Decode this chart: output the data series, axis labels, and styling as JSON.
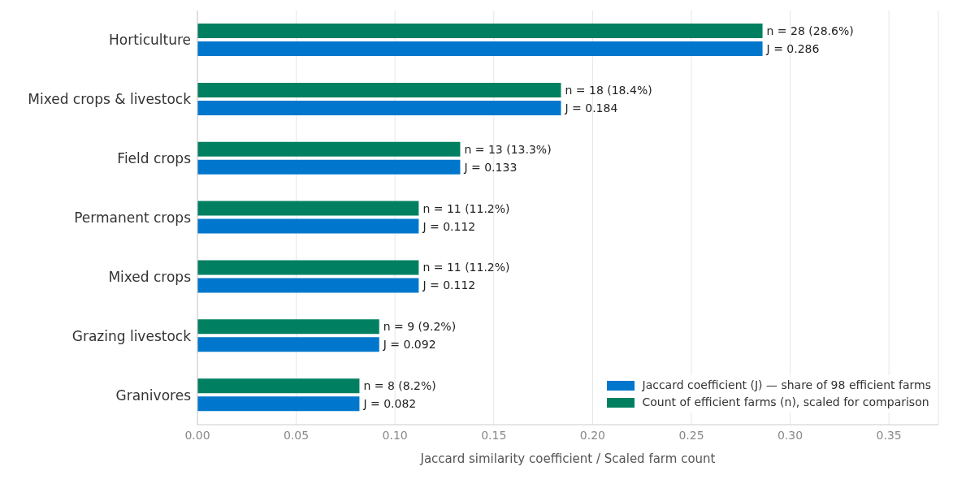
{
  "chart_data": {
    "type": "bar",
    "orientation": "horizontal",
    "xlabel": "Jaccard similarity coefficient  /  Scaled farm count",
    "categories": [
      "Horticulture",
      "Mixed crops & livestock",
      "Field crops",
      "Permanent crops",
      "Mixed crops",
      "Grazing livestock",
      "Granivores"
    ],
    "series": [
      {
        "name": "Jaccard coefficient (J) — share of 98 efficient farms",
        "color": "#0077cc",
        "values": [
          0.286,
          0.184,
          0.133,
          0.112,
          0.112,
          0.092,
          0.082
        ],
        "value_labels": [
          "J = 0.286",
          "J = 0.184",
          "J = 0.133",
          "J = 0.112",
          "J = 0.112",
          "J = 0.092",
          "J = 0.082"
        ]
      },
      {
        "name": "Count of efficient farms (n), scaled for comparison",
        "color": "#008060",
        "values": [
          0.286,
          0.184,
          0.133,
          0.112,
          0.112,
          0.092,
          0.082
        ],
        "value_labels": [
          "n = 28 (28.6%)",
          "n = 18 (18.4%)",
          "n = 13 (13.3%)",
          "n = 11 (11.2%)",
          "n = 11 (11.2%)",
          "n = 9 (9.2%)",
          "n = 8 (8.2%)"
        ]
      }
    ],
    "xlim": [
      0,
      0.375
    ],
    "xticks": [
      {
        "value": 0,
        "label": "0.00"
      },
      {
        "value": 0.05,
        "label": "0.05"
      },
      {
        "value": 0.1,
        "label": "0.10"
      },
      {
        "value": 0.15,
        "label": "0.15"
      },
      {
        "value": 0.2,
        "label": "0.20"
      },
      {
        "value": 0.25,
        "label": "0.25"
      },
      {
        "value": 0.3,
        "label": "0.30"
      },
      {
        "value": 0.35,
        "label": "0.35"
      }
    ],
    "grid": "x",
    "legend": "bottom right"
  }
}
